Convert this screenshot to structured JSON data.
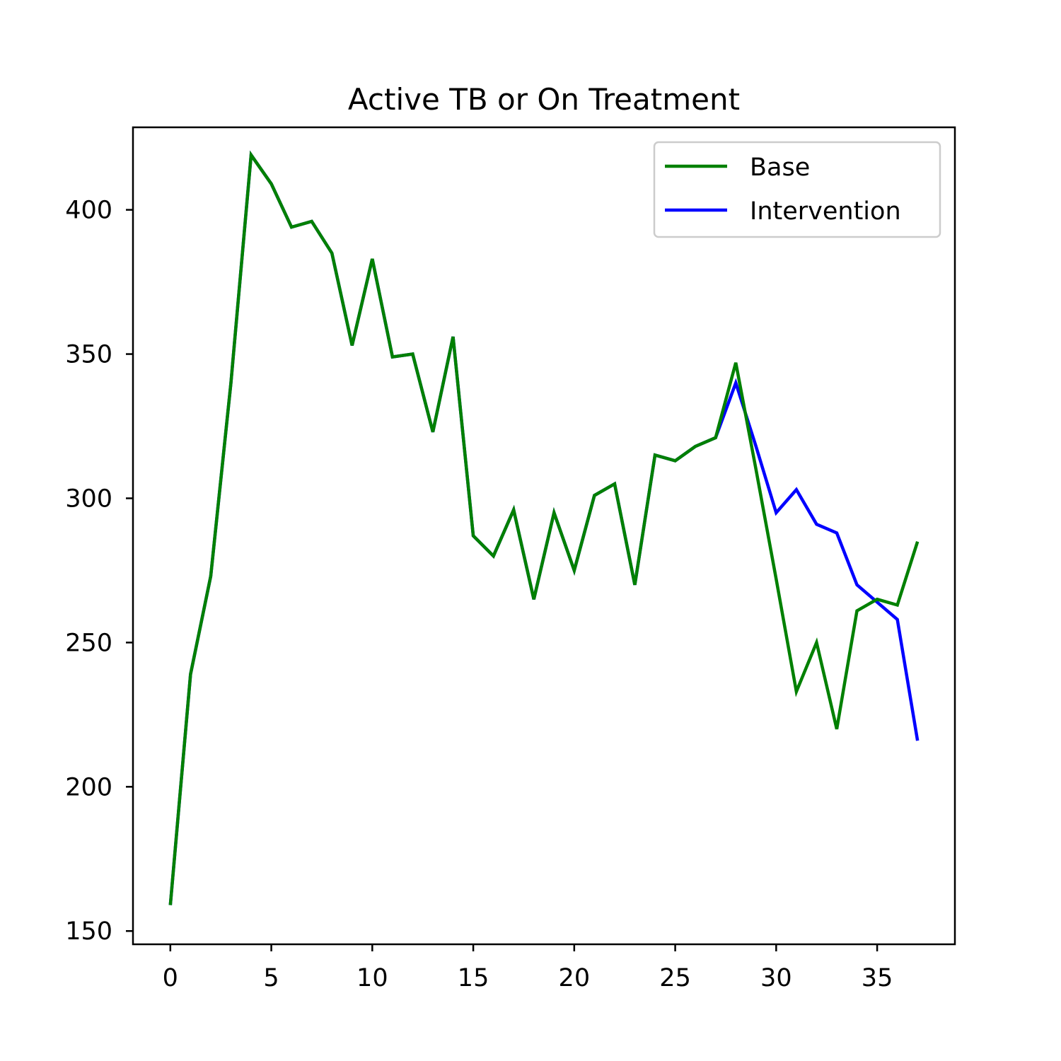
{
  "chart_data": {
    "type": "line",
    "title": "Active TB or On Treatment",
    "xlabel": "",
    "ylabel": "",
    "xlim": [
      -1.85,
      38.85
    ],
    "ylim": [
      145.4,
      428.6
    ],
    "xticks": [
      0,
      5,
      10,
      15,
      20,
      25,
      30,
      35
    ],
    "yticks": [
      150,
      200,
      250,
      300,
      350,
      400
    ],
    "grid": false,
    "legend_position": "upper-right",
    "series": [
      {
        "name": "Intervention",
        "color": "#0000ff",
        "x": [
          0,
          1,
          2,
          3,
          4,
          5,
          6,
          7,
          8,
          9,
          10,
          11,
          12,
          13,
          14,
          15,
          16,
          17,
          18,
          19,
          20,
          21,
          22,
          23,
          24,
          25,
          26,
          27,
          28,
          29,
          30,
          31,
          32,
          33,
          34,
          35,
          36,
          37
        ],
        "y": [
          159,
          239,
          273,
          340,
          419,
          409,
          394,
          396,
          385,
          353,
          383,
          349,
          350,
          323,
          356,
          287,
          280,
          296,
          265,
          295,
          275,
          301,
          305,
          270,
          315,
          313,
          318,
          321,
          340,
          318,
          295,
          303,
          291,
          288,
          270,
          264,
          258,
          216
        ]
      },
      {
        "name": "Base",
        "color": "#008000",
        "x": [
          0,
          1,
          2,
          3,
          4,
          5,
          6,
          7,
          8,
          9,
          10,
          11,
          12,
          13,
          14,
          15,
          16,
          17,
          18,
          19,
          20,
          21,
          22,
          23,
          24,
          25,
          26,
          27,
          28,
          29,
          30,
          31,
          32,
          33,
          34,
          35,
          36,
          37
        ],
        "y": [
          159,
          239,
          273,
          340,
          419,
          409,
          394,
          396,
          385,
          353,
          383,
          349,
          350,
          323,
          356,
          287,
          280,
          296,
          265,
          295,
          275,
          301,
          305,
          270,
          315,
          313,
          318,
          321,
          347,
          310,
          272,
          233,
          250,
          220,
          261,
          265,
          263,
          285
        ]
      }
    ],
    "legend_entries": [
      {
        "label": "Base",
        "color": "#008000"
      },
      {
        "label": "Intervention",
        "color": "#0000ff"
      }
    ]
  }
}
